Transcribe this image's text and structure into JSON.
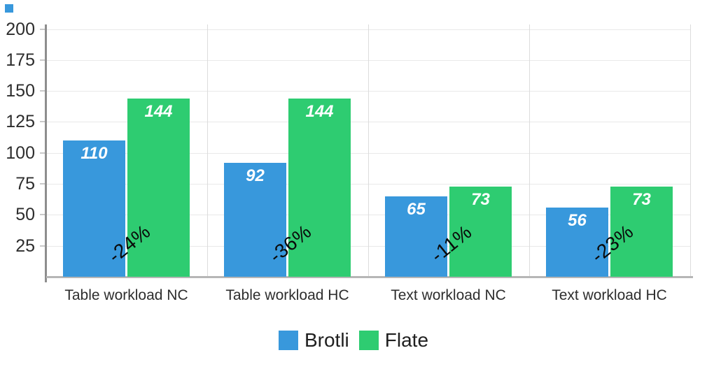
{
  "corner_mark": {
    "color": "#3898dc"
  },
  "chart_data": {
    "type": "bar",
    "title": "",
    "xlabel": "",
    "ylabel": "",
    "categories": [
      "Table workload NC",
      "Table workload HC",
      "Text workload NC",
      "Text workload HC"
    ],
    "series": [
      {
        "name": "Brotli",
        "color": "#3898dc",
        "values": [
          110,
          92,
          65,
          56
        ]
      },
      {
        "name": "Flate",
        "color": "#2ecc71",
        "values": [
          144,
          144,
          73,
          73
        ]
      }
    ],
    "bar_value_labels": [
      "110",
      "92",
      "65",
      "56",
      "144",
      "144",
      "73",
      "73"
    ],
    "annotations": [
      {
        "label": "-24%",
        "category_index": 0
      },
      {
        "label": "-36%",
        "category_index": 1
      },
      {
        "label": "-11%",
        "category_index": 2
      },
      {
        "label": "-23%",
        "category_index": 3
      }
    ],
    "y_ticks": [
      25,
      50,
      75,
      100,
      125,
      150,
      175,
      200
    ],
    "ylim": [
      0,
      200
    ],
    "grid": "faint horizontal lines at each tick, faint vertical category separators",
    "legend_position": "bottom-center",
    "colors": {
      "brotli_blue": "#3898dc",
      "flate_green": "#2ecc71",
      "y_axis_line": "#8e8e8e",
      "x_axis_line": "#b6b6b6",
      "h_gridline": "#e9e9e9",
      "v_gridline": "#dcdcdc",
      "tick_text": "#2d2d2d",
      "annotation_text": "#0a0a0a",
      "bar_value_text": "#ffffff"
    }
  }
}
